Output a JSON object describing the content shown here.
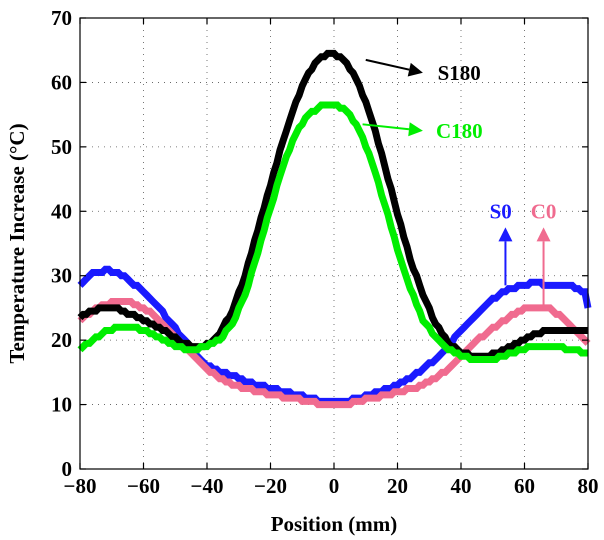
{
  "chart_data": {
    "type": "line",
    "xlabel": "Position (mm)",
    "ylabel": "Temperature Increase (°C)",
    "xlim": [
      -80,
      80
    ],
    "ylim": [
      0,
      70
    ],
    "xticks": [
      -80,
      -60,
      -40,
      -20,
      0,
      20,
      40,
      60,
      80
    ],
    "yticks": [
      0,
      10,
      20,
      30,
      40,
      50,
      60,
      70
    ],
    "xtick_labels": [
      "−80",
      "−60",
      "−40",
      "−20",
      "0",
      "20",
      "40",
      "60",
      "80"
    ],
    "ytick_labels": [
      "0",
      "10",
      "20",
      "30",
      "40",
      "50",
      "60",
      "70"
    ],
    "grid": true,
    "series": [
      {
        "name": "S0",
        "color": "#1a1aff",
        "x": [
          -80,
          -76,
          -72,
          -68,
          -64,
          -60,
          -56,
          -52,
          -48,
          -44,
          -40,
          -36,
          -32,
          -28,
          -24,
          -20,
          -16,
          -12,
          -8,
          -4,
          0,
          4,
          8,
          12,
          16,
          20,
          24,
          28,
          32,
          36,
          40,
          44,
          48,
          52,
          56,
          60,
          64,
          68,
          72,
          76,
          79,
          80
        ],
        "y": [
          28.5,
          30.3,
          30.8,
          30.6,
          29,
          27.5,
          25.5,
          23,
          20.5,
          18,
          16,
          15,
          14.5,
          13.5,
          13,
          12.5,
          12,
          11.5,
          11,
          10.6,
          10.3,
          10.6,
          11,
          11.6,
          12.3,
          13,
          14,
          15.5,
          17,
          19,
          21.5,
          23.5,
          25.5,
          27,
          28,
          28.7,
          28.8,
          28.6,
          28.4,
          28.2,
          27.5,
          25
        ]
      },
      {
        "name": "C0",
        "color": "#f06b8f",
        "x": [
          -80,
          -76,
          -72,
          -68,
          -64,
          -60,
          -56,
          -52,
          -48,
          -44,
          -40,
          -36,
          -32,
          -28,
          -24,
          -20,
          -16,
          -12,
          -8,
          -4,
          0,
          4,
          8,
          12,
          16,
          20,
          24,
          28,
          32,
          36,
          40,
          44,
          48,
          52,
          56,
          60,
          64,
          68,
          72,
          76,
          80
        ],
        "y": [
          23,
          24.5,
          25.5,
          26,
          25.8,
          25,
          23.5,
          21.5,
          19.5,
          17.5,
          15.5,
          14,
          13.2,
          12.5,
          12,
          11.6,
          11.2,
          10.9,
          10.5,
          10.1,
          9.9,
          10.1,
          10.6,
          11,
          11.4,
          11.9,
          12.4,
          13,
          14,
          15.5,
          17.5,
          19.5,
          21,
          22.5,
          23.8,
          24.8,
          25.1,
          24.8,
          23.5,
          21.5,
          19.5
        ]
      },
      {
        "name": "S180",
        "color": "#000000",
        "x": [
          -80,
          -76,
          -72,
          -68,
          -64,
          -60,
          -56,
          -52,
          -48,
          -44,
          -40,
          -36,
          -32,
          -28,
          -24,
          -20,
          -16,
          -12,
          -8,
          -4,
          0,
          4,
          8,
          12,
          16,
          20,
          24,
          28,
          32,
          36,
          40,
          44,
          48,
          52,
          56,
          60,
          64,
          68,
          72,
          76,
          80
        ],
        "y": [
          23.5,
          24.5,
          25,
          24.8,
          24,
          23,
          22,
          21,
          19.5,
          19,
          19.3,
          21,
          24.5,
          30,
          37,
          44,
          51,
          57,
          61.5,
          64,
          64.5,
          63,
          59.5,
          54,
          47,
          39.5,
          32.5,
          27,
          22.5,
          19.5,
          18,
          17.5,
          17.5,
          18,
          19,
          20,
          21,
          21.5,
          21.7,
          21.7,
          21.5
        ]
      },
      {
        "name": "C180",
        "color": "#00ee00",
        "x": [
          -80,
          -76,
          -72,
          -68,
          -64,
          -60,
          -56,
          -52,
          -48,
          -44,
          -40,
          -36,
          -32,
          -28,
          -24,
          -20,
          -16,
          -12,
          -8,
          -4,
          0,
          4,
          8,
          12,
          16,
          20,
          24,
          28,
          32,
          36,
          40,
          44,
          48,
          52,
          56,
          60,
          64,
          68,
          72,
          76,
          80
        ],
        "y": [
          18.7,
          20,
          21.3,
          22,
          22,
          21.5,
          20.5,
          19.5,
          18.8,
          18.5,
          19,
          20,
          22.5,
          27,
          33.5,
          40.5,
          47,
          52,
          55,
          56.3,
          56.5,
          55.5,
          52.5,
          47.5,
          41,
          34,
          28,
          23,
          20.5,
          18.5,
          17.5,
          17,
          16.8,
          17.3,
          18,
          18.7,
          19,
          19,
          18.8,
          18.4,
          17.8
        ]
      }
    ],
    "annotations": [
      {
        "text": "S180",
        "color": "#000000",
        "arrow_from": [
          10,
          63.5
        ],
        "arrow_to": [
          28,
          61.5
        ],
        "label_at": [
          32,
          61.5
        ],
        "anchor": "start"
      },
      {
        "text": "C180",
        "color": "#00ee00",
        "arrow_from": [
          9,
          53.5
        ],
        "arrow_to": [
          28,
          52.5
        ],
        "label_at": [
          31.5,
          52.5
        ],
        "anchor": "start"
      },
      {
        "text": "S0",
        "color": "#1a1aff",
        "arrow_from": [
          54,
          28.5
        ],
        "arrow_to": [
          54,
          37.5
        ],
        "label_at": [
          52.5,
          40
        ],
        "anchor": "middle"
      },
      {
        "text": "C0",
        "color": "#f06b8f",
        "arrow_from": [
          66,
          25
        ],
        "arrow_to": [
          66,
          37.5
        ],
        "label_at": [
          66,
          40
        ],
        "anchor": "middle"
      }
    ]
  }
}
